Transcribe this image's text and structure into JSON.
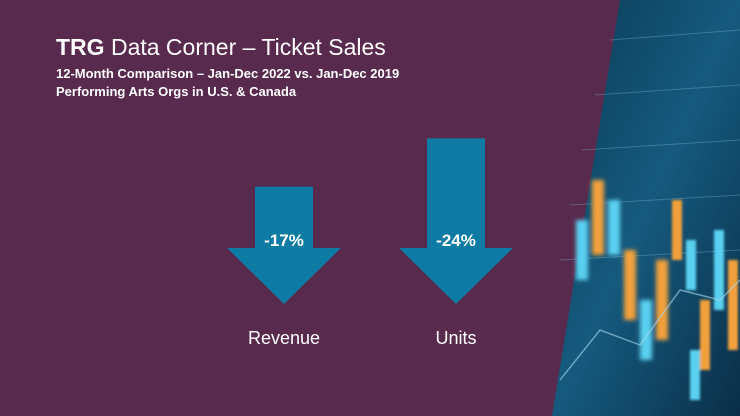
{
  "header": {
    "brand": "TRG",
    "title_rest": " Data Corner – Ticket Sales",
    "subtitle_1": "12-Month Comparison – Jan-Dec 2022 vs. Jan-Dec 2019",
    "subtitle_2": "Performing Arts Orgs in U.S. & Canada"
  },
  "colors": {
    "background": "#582a4d",
    "arrow": "#0e7ba5",
    "text": "#ffffff",
    "deco_orange": "#f2a03a",
    "deco_blue": "#5ad0f0"
  },
  "chart_data": {
    "type": "bar",
    "categories": [
      "Revenue",
      "Units"
    ],
    "values": [
      -17,
      -24
    ],
    "data_labels": [
      "-17%",
      "-24%"
    ],
    "unit": "%",
    "title": "",
    "xlabel": "",
    "ylabel": ""
  }
}
